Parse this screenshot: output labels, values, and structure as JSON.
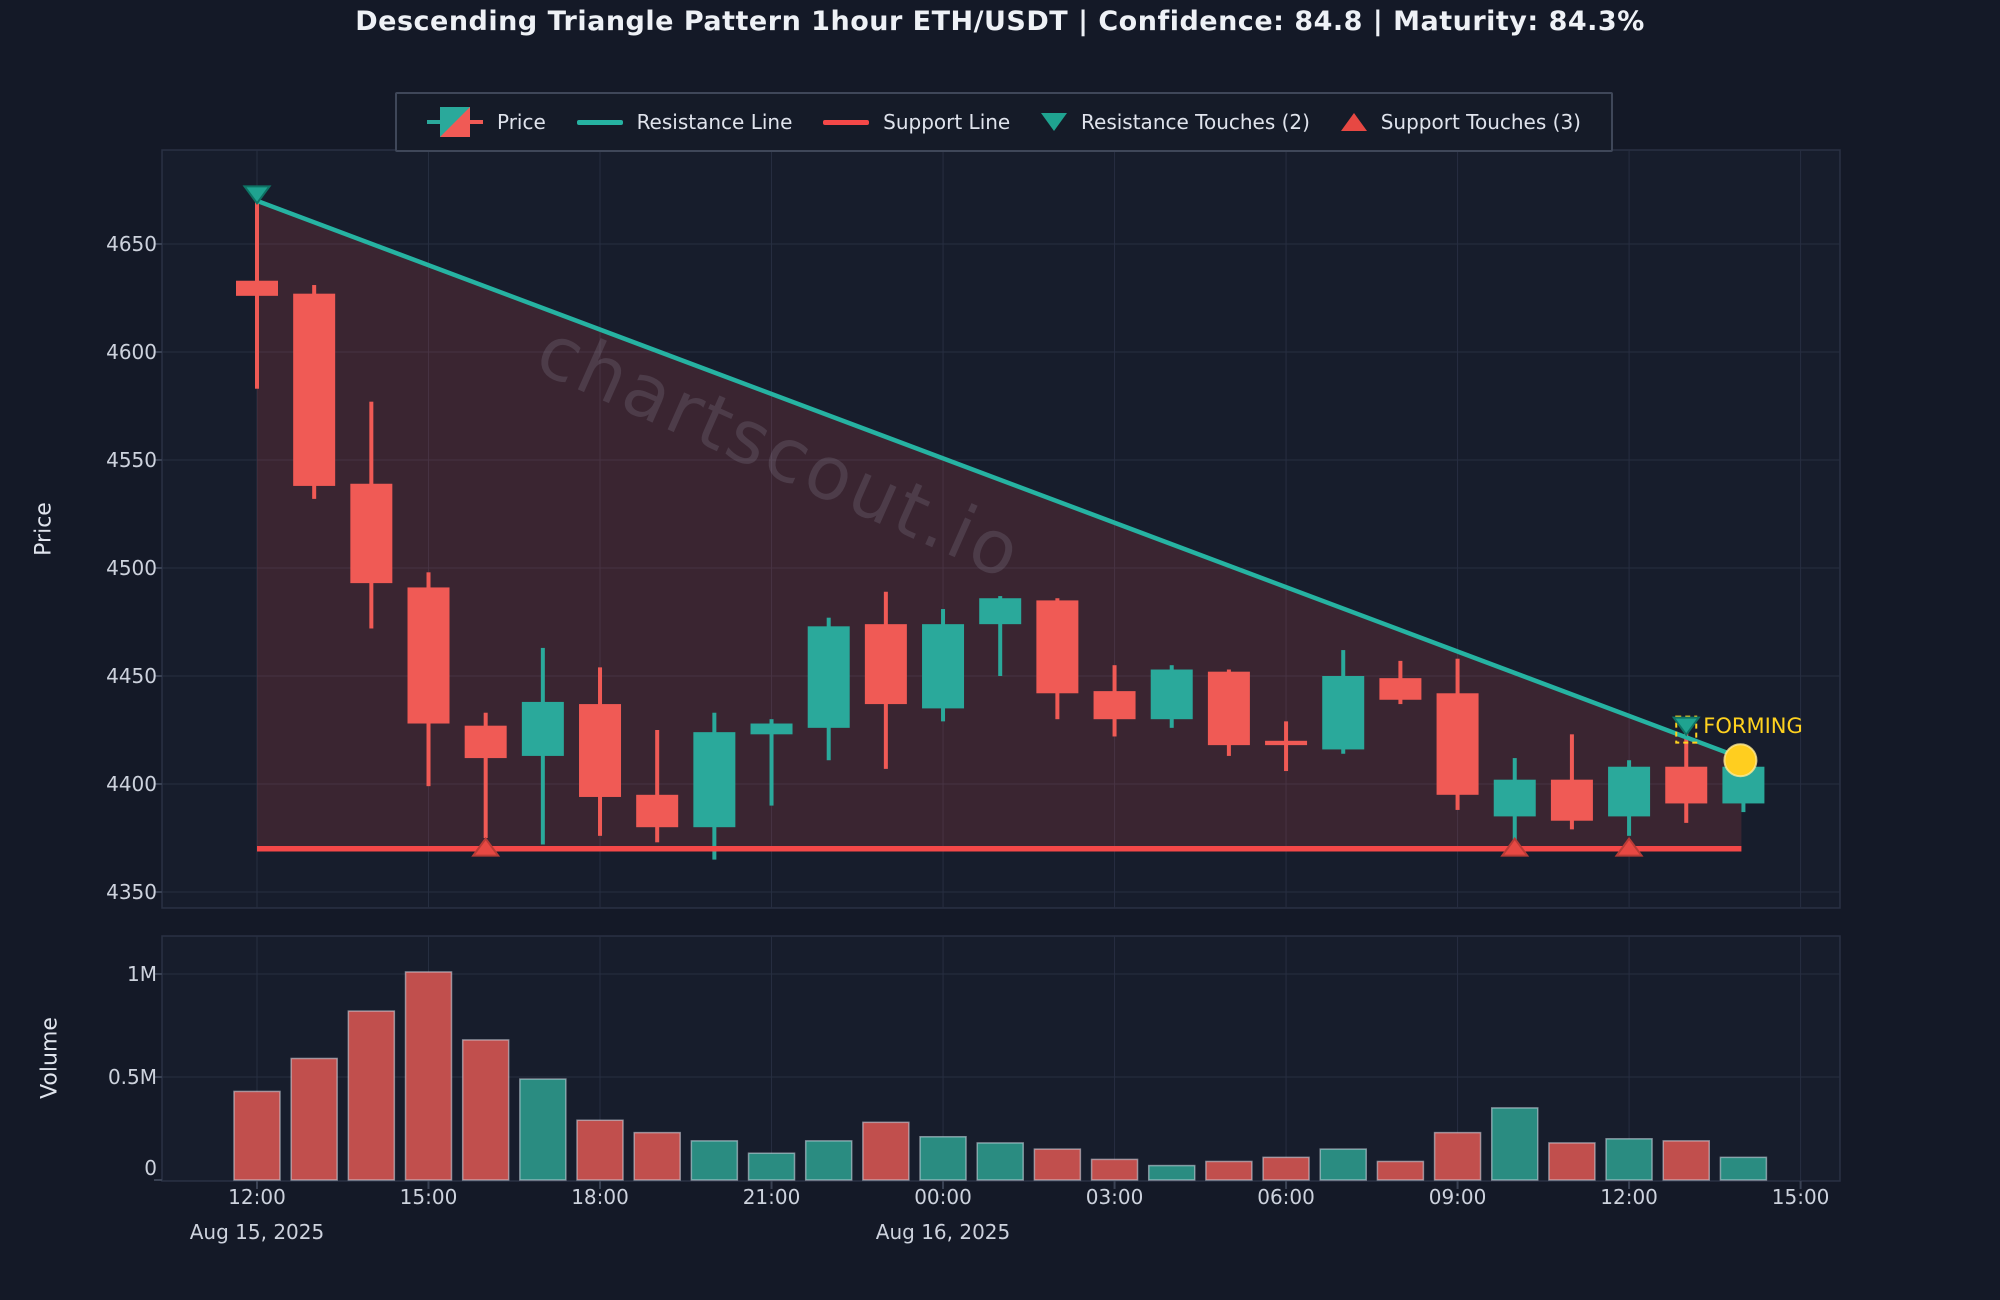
{
  "title": "Descending Triangle Pattern 1hour ETH/USDT | Confidence: 84.8 | Maturity: 84.3%",
  "watermark": "chartscout.io",
  "legend": {
    "items": [
      {
        "label": "Price",
        "icon": "candlestick-swatch"
      },
      {
        "label": "Resistance Line",
        "icon": "teal-line-swatch"
      },
      {
        "label": "Support Line",
        "icon": "red-line-swatch"
      },
      {
        "label": "Resistance Touches (2)",
        "icon": "triangle-down-teal"
      },
      {
        "label": "Support Touches (3)",
        "icon": "triangle-up-red"
      }
    ]
  },
  "chart_data": {
    "type": "candlestick-with-volume",
    "pattern": "Descending Triangle",
    "timeframe": "1hour",
    "symbol": "ETH/USDT",
    "confidence": 84.8,
    "maturity_pct": 84.3,
    "price_axis": {
      "label": "Price",
      "ticks": [
        4650,
        4600,
        4550,
        4500,
        4450,
        4400,
        4350
      ],
      "ylim": [
        4338,
        4700
      ]
    },
    "volume_axis": {
      "label": "Volume",
      "ticks": [
        "1M",
        "0.5M",
        "0"
      ],
      "tick_values": [
        1.0,
        0.5,
        0
      ],
      "ylim": [
        0,
        1.19
      ]
    },
    "x_ticks": {
      "labels": [
        "12:00",
        "15:00",
        "18:00",
        "21:00",
        "00:00",
        "03:00",
        "06:00",
        "09:00",
        "12:00",
        "15:00"
      ],
      "candle_indices": [
        0,
        3,
        6,
        9,
        12,
        15,
        18,
        21,
        24,
        27
      ]
    },
    "x_dates": [
      {
        "label": "Aug 15, 2025",
        "candle_index": 0
      },
      {
        "label": "Aug 16, 2025",
        "candle_index": 12
      }
    ],
    "candles": [
      {
        "time": "12:00",
        "open": 4633,
        "high": 4670,
        "low": 4583,
        "close": 4626,
        "volume_m": 0.43
      },
      {
        "time": "13:00",
        "open": 4627,
        "high": 4631,
        "low": 4532,
        "close": 4538,
        "volume_m": 0.59
      },
      {
        "time": "14:00",
        "open": 4539,
        "high": 4577,
        "low": 4472,
        "close": 4493,
        "volume_m": 0.82
      },
      {
        "time": "15:00",
        "open": 4491,
        "high": 4498,
        "low": 4399,
        "close": 4428,
        "volume_m": 1.01
      },
      {
        "time": "16:00",
        "open": 4427,
        "high": 4433,
        "low": 4375,
        "close": 4412,
        "volume_m": 0.68
      },
      {
        "time": "17:00",
        "open": 4413,
        "high": 4463,
        "low": 4372,
        "close": 4438,
        "volume_m": 0.49
      },
      {
        "time": "18:00",
        "open": 4437,
        "high": 4454,
        "low": 4376,
        "close": 4394,
        "volume_m": 0.29
      },
      {
        "time": "19:00",
        "open": 4395,
        "high": 4425,
        "low": 4373,
        "close": 4380,
        "volume_m": 0.23
      },
      {
        "time": "20:00",
        "open": 4380,
        "high": 4433,
        "low": 4365,
        "close": 4424,
        "volume_m": 0.19
      },
      {
        "time": "21:00",
        "open": 4423,
        "high": 4430,
        "low": 4390,
        "close": 4428,
        "volume_m": 0.13
      },
      {
        "time": "22:00",
        "open": 4426,
        "high": 4477,
        "low": 4411,
        "close": 4473,
        "volume_m": 0.19
      },
      {
        "time": "23:00",
        "open": 4474,
        "high": 4489,
        "low": 4407,
        "close": 4437,
        "volume_m": 0.28
      },
      {
        "time": "00:00",
        "open": 4435,
        "high": 4481,
        "low": 4429,
        "close": 4474,
        "volume_m": 0.21
      },
      {
        "time": "01:00",
        "open": 4474,
        "high": 4487,
        "low": 4450,
        "close": 4486,
        "volume_m": 0.18
      },
      {
        "time": "02:00",
        "open": 4485,
        "high": 4486,
        "low": 4430,
        "close": 4442,
        "volume_m": 0.15
      },
      {
        "time": "03:00",
        "open": 4443,
        "high": 4455,
        "low": 4422,
        "close": 4430,
        "volume_m": 0.1
      },
      {
        "time": "04:00",
        "open": 4430,
        "high": 4455,
        "low": 4426,
        "close": 4453,
        "volume_m": 0.07
      },
      {
        "time": "05:00",
        "open": 4452,
        "high": 4453,
        "low": 4413,
        "close": 4418,
        "volume_m": 0.09
      },
      {
        "time": "06:00",
        "open": 4420,
        "high": 4429,
        "low": 4406,
        "close": 4418,
        "volume_m": 0.11
      },
      {
        "time": "07:00",
        "open": 4416,
        "high": 4462,
        "low": 4414,
        "close": 4450,
        "volume_m": 0.15
      },
      {
        "time": "08:00",
        "open": 4449,
        "high": 4457,
        "low": 4437,
        "close": 4439,
        "volume_m": 0.09
      },
      {
        "time": "09:00",
        "open": 4442,
        "high": 4458,
        "low": 4388,
        "close": 4395,
        "volume_m": 0.23
      },
      {
        "time": "10:00",
        "open": 4385,
        "high": 4412,
        "low": 4372,
        "close": 4402,
        "volume_m": 0.35
      },
      {
        "time": "11:00",
        "open": 4402,
        "high": 4423,
        "low": 4379,
        "close": 4383,
        "volume_m": 0.18
      },
      {
        "time": "12:00",
        "open": 4385,
        "high": 4411,
        "low": 4376,
        "close": 4408,
        "volume_m": 0.2
      },
      {
        "time": "13:00",
        "open": 4408,
        "high": 4424,
        "low": 4382,
        "close": 4391,
        "volume_m": 0.19
      },
      {
        "time": "14:00",
        "open": 4391,
        "high": 4411,
        "low": 4387,
        "close": 4408,
        "volume_m": 0.11
      }
    ],
    "support_line": {
      "price": 4370,
      "from_candle": 0,
      "to_candle": 26
    },
    "resistance_line": {
      "from_candle": 0,
      "from_price": 4670,
      "to_candle": 26,
      "to_price": 4412
    },
    "markers": {
      "resistance_touches": [
        {
          "candle_index": 0,
          "price": 4673
        },
        {
          "candle_index": 25,
          "price": 4427,
          "forming": true
        }
      ],
      "support_touches": [
        {
          "candle_index": 4,
          "price": 4371
        },
        {
          "candle_index": 22,
          "price": 4371
        },
        {
          "candle_index": 24,
          "price": 4371
        }
      ],
      "forming_label": "FORMING",
      "current_price_dot": {
        "candle_index": 26,
        "price": 4411
      }
    },
    "colors": {
      "background": "#141927",
      "panel": "#171d2c",
      "grid": "#272e41",
      "panel_border": "#2a3144",
      "bull": "#2aa99b",
      "bear": "#f05a55",
      "volume_bull": "#2a8c81",
      "volume_bear": "#c14f4d",
      "resistance": "#26b3a2",
      "support": "#f44848",
      "triangle_fill": "rgba(240,80,80,0.16)",
      "marker_up": "#e74843",
      "marker_down": "#1fa390",
      "forming": "#ffd21f",
      "current_dot": "#ffce1f",
      "tick_text": "#cdd2dd"
    }
  }
}
